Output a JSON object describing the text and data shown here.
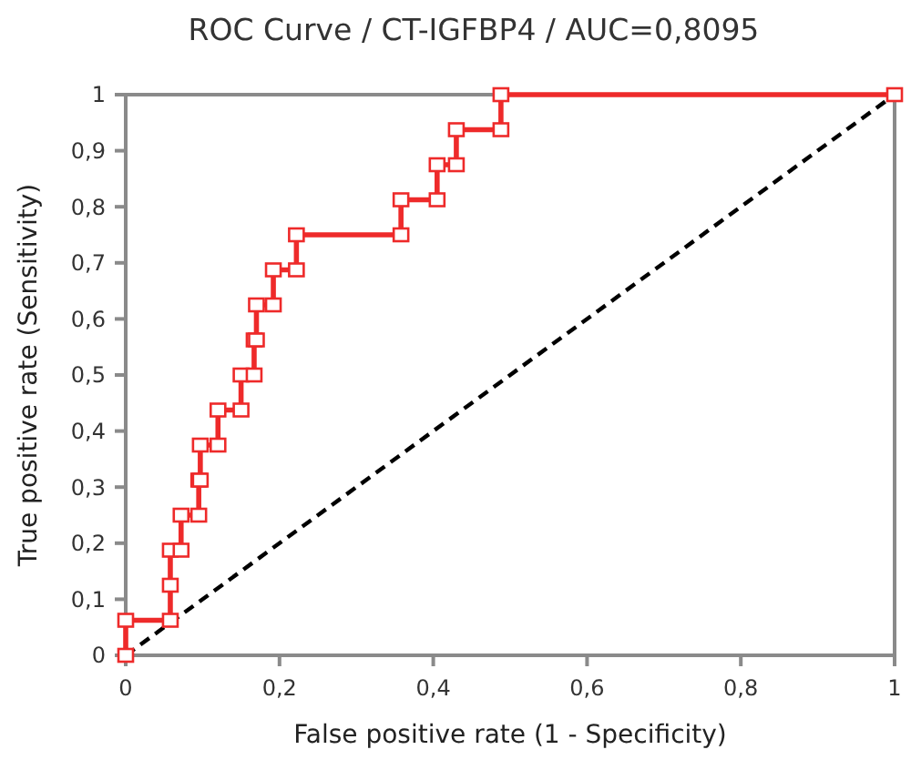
{
  "chart_data": {
    "type": "line",
    "title": "ROC Curve / CT-IGFBP4 / AUC=0,8095",
    "xlabel": "False positive rate (1 - Specificity)",
    "ylabel": "True positive rate (Sensitivity)",
    "xlim": [
      0,
      1
    ],
    "ylim": [
      0,
      1
    ],
    "xticks": [
      0,
      {
        "value": 0.2,
        "label": "0,2"
      },
      {
        "value": 0.4,
        "label": "0,4"
      },
      {
        "value": 0.6,
        "label": "0,6"
      },
      {
        "value": 0.8,
        "label": "0,8"
      },
      1
    ],
    "yticks": [
      0,
      {
        "value": 0.1,
        "label": "0,1"
      },
      {
        "value": 0.2,
        "label": "0,2"
      },
      {
        "value": 0.3,
        "label": "0,3"
      },
      {
        "value": 0.4,
        "label": "0,4"
      },
      {
        "value": 0.5,
        "label": "0,5"
      },
      {
        "value": 0.6,
        "label": "0,6"
      },
      {
        "value": 0.7,
        "label": "0,7"
      },
      {
        "value": 0.8,
        "label": "0,8"
      },
      {
        "value": 0.9,
        "label": "0,9"
      },
      1
    ],
    "grid": false,
    "series": [
      {
        "color": "#ee2a2a",
        "marker": "square",
        "line_style": "solid",
        "x": [
          0,
          0,
          0.058,
          0.058,
          0.058,
          0.072,
          0.072,
          0.095,
          0.095,
          0.097,
          0.097,
          0.12,
          0.12,
          0.15,
          0.15,
          0.167,
          0.167,
          0.17,
          0.17,
          0.192,
          0.192,
          0.222,
          0.222,
          0.358,
          0.358,
          0.405,
          0.405,
          0.43,
          0.43,
          0.488,
          0.488,
          1
        ],
        "values": [
          0,
          0.0625,
          0.0625,
          0.125,
          0.1875,
          0.1875,
          0.25,
          0.25,
          0.3125,
          0.3125,
          0.375,
          0.375,
          0.4375,
          0.4375,
          0.5,
          0.5,
          0.5625,
          0.5625,
          0.625,
          0.625,
          0.6875,
          0.6875,
          0.75,
          0.75,
          0.8125,
          0.8125,
          0.875,
          0.875,
          0.9375,
          0.9375,
          1,
          1
        ]
      },
      {
        "color": "#000000",
        "marker": "none",
        "line_style": "dashed",
        "x": [
          0,
          1
        ],
        "values": [
          0,
          1
        ]
      }
    ]
  }
}
